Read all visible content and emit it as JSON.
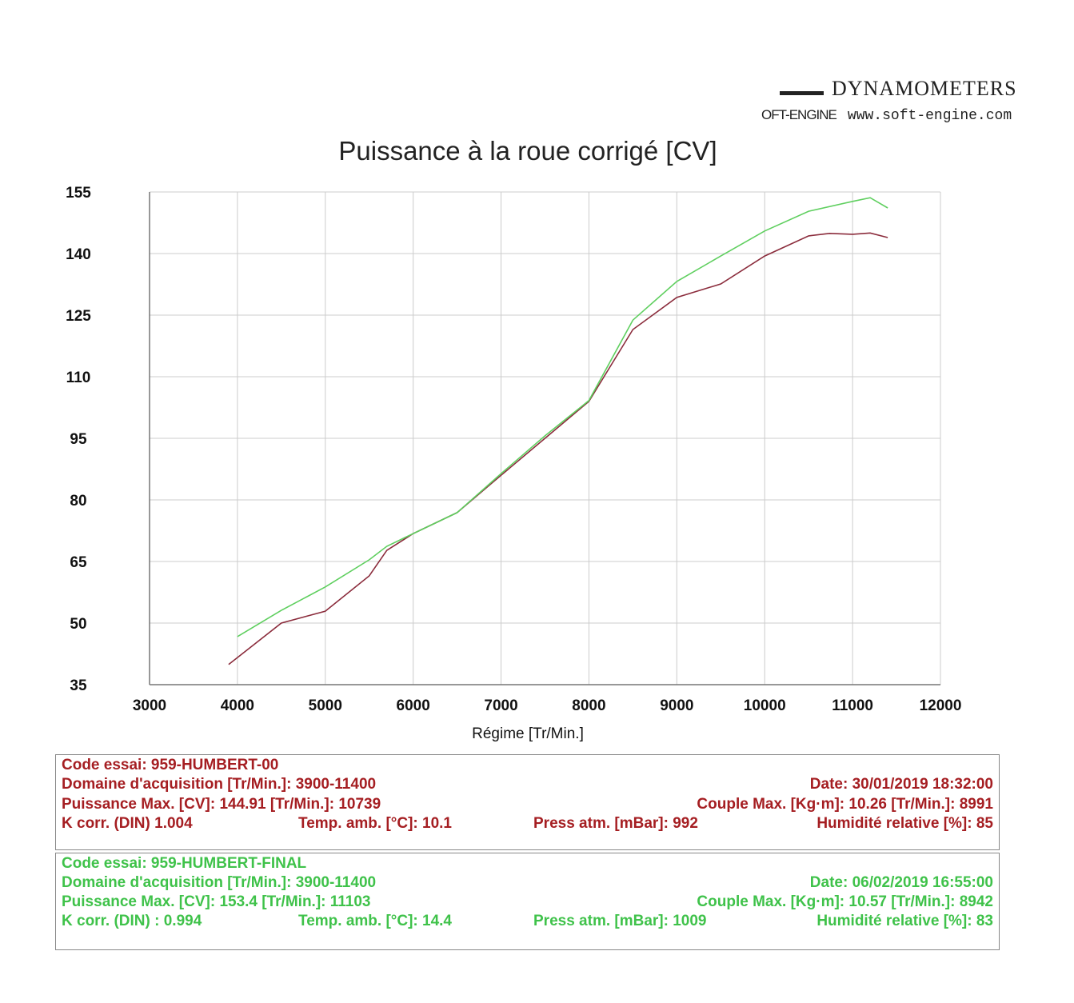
{
  "logo": {
    "line1": "DYNAMOMETERS",
    "brand": "OFT-ENGINE",
    "url": "www.soft-engine.com"
  },
  "chart_data": {
    "type": "line",
    "title": "Puissance à la roue corrigé [CV]",
    "xlabel": "Régime [Tr/Min.]",
    "ylabel": "",
    "xlim": [
      3000,
      12000
    ],
    "ylim": [
      35,
      155
    ],
    "xticks": [
      3000,
      4000,
      5000,
      6000,
      7000,
      8000,
      9000,
      10000,
      11000,
      12000
    ],
    "yticks": [
      155,
      140,
      125,
      110,
      95,
      80,
      65,
      50,
      35
    ],
    "grid": true,
    "series": [
      {
        "color": "#8b2c3c",
        "points": [
          [
            3900,
            39.9
          ],
          [
            4000,
            41.6
          ],
          [
            4500,
            50
          ],
          [
            5000,
            52.9
          ],
          [
            5500,
            61.5
          ],
          [
            5700,
            67.7
          ],
          [
            6000,
            71.8
          ],
          [
            6500,
            76.9
          ],
          [
            7000,
            86
          ],
          [
            7500,
            95
          ],
          [
            8000,
            104
          ],
          [
            8500,
            121.5
          ],
          [
            9000,
            129.3
          ],
          [
            9500,
            132.6
          ],
          [
            10000,
            139.4
          ],
          [
            10500,
            144.3
          ],
          [
            10739,
            144.9
          ],
          [
            11000,
            144.7
          ],
          [
            11200,
            145
          ],
          [
            11400,
            143.9
          ]
        ]
      },
      {
        "color": "#5fcf5f",
        "points": [
          [
            4000,
            46.7
          ],
          [
            4500,
            53.1
          ],
          [
            5000,
            58.8
          ],
          [
            5500,
            65.4
          ],
          [
            5700,
            68.7
          ],
          [
            6000,
            71.8
          ],
          [
            6500,
            76.9
          ],
          [
            7000,
            86.4
          ],
          [
            7500,
            95.6
          ],
          [
            8000,
            104.2
          ],
          [
            8500,
            123.8
          ],
          [
            9000,
            133.2
          ],
          [
            9500,
            139.4
          ],
          [
            10000,
            145.5
          ],
          [
            10500,
            150.3
          ],
          [
            11000,
            152.7
          ],
          [
            11200,
            153.6
          ],
          [
            11400,
            151.1
          ]
        ]
      }
    ]
  },
  "tests": [
    {
      "color": "#a51e22",
      "code": "Code essai: 959-HUMBERT-00",
      "domaine": "Domaine d'acquisition [Tr/Min.]: 3900-11400",
      "date": "Date: 30/01/2019   18:32:00",
      "puissance": "Puissance Max. [CV]: 144.91   [Tr/Min.]: 10739",
      "couple": "Couple Max. [Kg·m]: 10.26   [Tr/Min.]: 8991",
      "kcorr": "K corr. (DIN)   1.004",
      "temp": "Temp. amb. [°C]: 10.1",
      "press": "Press atm. [mBar]: 992",
      "humid": "Humidité relative [%]: 85"
    },
    {
      "color": "#3fc24a",
      "code": "Code essai: 959-HUMBERT-FINAL",
      "domaine": "Domaine d'acquisition [Tr/Min.]: 3900-11400",
      "date": "Date: 06/02/2019   16:55:00",
      "puissance": "Puissance Max. [CV]: 153.4   [Tr/Min.]: 11103",
      "couple": "Couple Max. [Kg·m]: 10.57   [Tr/Min.]: 8942",
      "kcorr": "K corr. (DIN) : 0.994",
      "temp": "Temp. amb. [°C]: 14.4",
      "press": "Press atm. [mBar]: 1009",
      "humid": "Humidité relative [%]: 83"
    }
  ]
}
